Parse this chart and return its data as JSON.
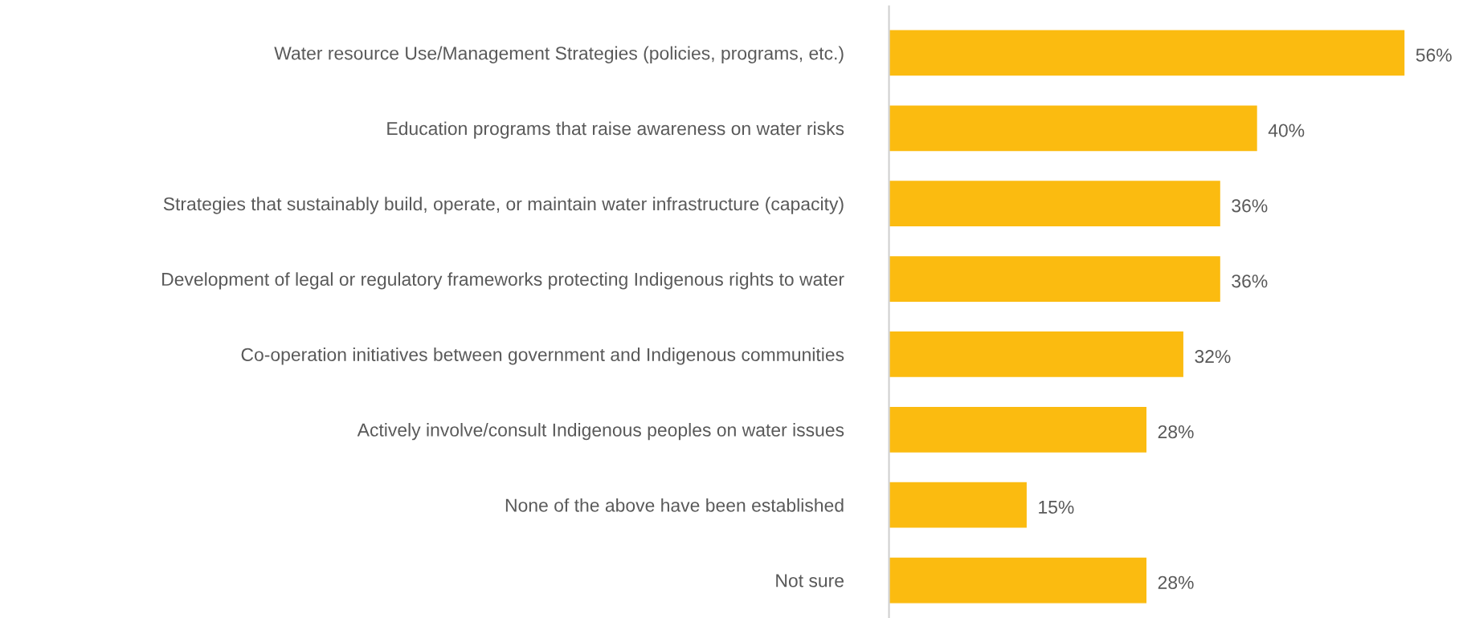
{
  "chart_data": {
    "type": "bar",
    "orientation": "horizontal",
    "categories": [
      "Water resource Use/Management Strategies (policies, programs, etc.)",
      "Education programs that raise awareness on water risks",
      "Strategies that sustainably build, operate, or maintain water infrastructure (capacity)",
      "Development of legal or regulatory frameworks protecting Indigenous rights to water",
      "Co-operation initiatives between government and Indigenous communities",
      "Actively involve/consult Indigenous peoples on water issues",
      "None of the above have been established",
      "Not sure"
    ],
    "values": [
      56,
      40,
      36,
      36,
      32,
      28,
      15,
      28
    ],
    "value_labels": [
      "56%",
      "40%",
      "36%",
      "36%",
      "32%",
      "28%",
      "15%",
      "28%"
    ],
    "color": "#fbbb10",
    "tick_labels": "y",
    "grid": false,
    "legend": false
  }
}
